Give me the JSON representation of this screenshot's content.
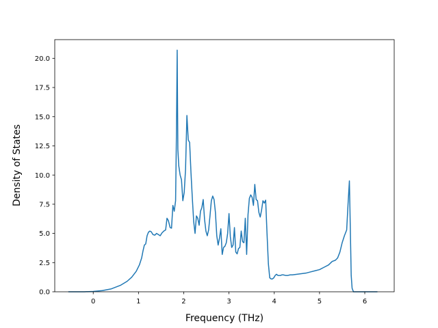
{
  "chart_data": {
    "type": "line",
    "title": "",
    "xlabel": "Frequency (THz)",
    "ylabel": "Density of States",
    "xlim": [
      -0.85,
      6.65
    ],
    "ylim": [
      0.0,
      21.6
    ],
    "xticks": [
      0,
      1,
      2,
      3,
      4,
      5,
      6
    ],
    "yticks": [
      0.0,
      2.5,
      5.0,
      7.5,
      10.0,
      12.5,
      15.0,
      17.5,
      20.0
    ],
    "xtick_labels": [
      "0",
      "1",
      "2",
      "3",
      "4",
      "5",
      "6"
    ],
    "ytick_labels": [
      "0.0",
      "2.5",
      "5.0",
      "7.5",
      "10.0",
      "12.5",
      "15.0",
      "17.5",
      "20.0"
    ],
    "grid": false,
    "legend": false,
    "series": [
      {
        "color": "#1f77b4",
        "x": [
          -0.55,
          -0.2,
          0.0,
          0.2,
          0.4,
          0.6,
          0.75,
          0.85,
          0.95,
          1.02,
          1.07,
          1.1,
          1.13,
          1.16,
          1.19,
          1.22,
          1.25,
          1.28,
          1.32,
          1.36,
          1.4,
          1.44,
          1.48,
          1.52,
          1.56,
          1.6,
          1.63,
          1.66,
          1.7,
          1.73,
          1.76,
          1.79,
          1.82,
          1.84,
          1.855,
          1.87,
          1.89,
          1.92,
          1.95,
          1.98,
          2.01,
          2.04,
          2.07,
          2.1,
          2.13,
          2.16,
          2.19,
          2.22,
          2.25,
          2.28,
          2.31,
          2.34,
          2.37,
          2.4,
          2.43,
          2.46,
          2.49,
          2.52,
          2.55,
          2.58,
          2.61,
          2.64,
          2.67,
          2.7,
          2.73,
          2.76,
          2.79,
          2.82,
          2.85,
          2.88,
          2.91,
          2.94,
          2.97,
          3.0,
          3.03,
          3.06,
          3.09,
          3.12,
          3.15,
          3.18,
          3.21,
          3.24,
          3.27,
          3.3,
          3.33,
          3.36,
          3.39,
          3.42,
          3.45,
          3.48,
          3.51,
          3.54,
          3.57,
          3.6,
          3.63,
          3.66,
          3.69,
          3.72,
          3.75,
          3.78,
          3.81,
          3.84,
          3.87,
          3.9,
          3.93,
          3.96,
          3.99,
          4.02,
          4.05,
          4.08,
          4.11,
          4.14,
          4.17,
          4.2,
          4.25,
          4.3,
          4.35,
          4.4,
          4.5,
          4.6,
          4.7,
          4.8,
          4.9,
          5.0,
          5.1,
          5.2,
          5.28,
          5.35,
          5.4,
          5.45,
          5.5,
          5.55,
          5.6,
          5.63,
          5.66,
          5.68,
          5.7,
          5.72,
          5.75,
          5.8,
          6.0,
          6.28
        ],
        "y": [
          0.0,
          0.0,
          0.03,
          0.1,
          0.25,
          0.55,
          0.9,
          1.25,
          1.75,
          2.3,
          2.9,
          3.5,
          4.0,
          4.1,
          4.8,
          5.1,
          5.2,
          5.15,
          4.9,
          4.85,
          5.0,
          4.9,
          4.8,
          5.05,
          5.2,
          5.3,
          6.3,
          6.1,
          5.5,
          5.45,
          7.4,
          6.9,
          7.8,
          14.0,
          20.7,
          12.2,
          10.8,
          10.0,
          9.6,
          7.8,
          8.5,
          10.5,
          15.1,
          13.0,
          12.8,
          10.2,
          8.0,
          6.0,
          5.0,
          6.5,
          6.3,
          5.7,
          6.9,
          7.2,
          7.9,
          6.2,
          5.2,
          4.8,
          5.3,
          6.5,
          7.8,
          8.2,
          7.9,
          6.8,
          4.8,
          4.0,
          4.6,
          5.4,
          3.2,
          3.8,
          3.9,
          4.2,
          5.0,
          6.7,
          4.7,
          3.8,
          4.0,
          5.5,
          3.4,
          3.25,
          3.7,
          3.8,
          5.2,
          4.3,
          4.2,
          6.3,
          3.2,
          6.6,
          8.0,
          8.3,
          8.1,
          7.4,
          9.2,
          7.9,
          7.8,
          6.8,
          6.4,
          7.0,
          7.8,
          7.6,
          7.85,
          5.0,
          2.4,
          1.2,
          1.1,
          1.1,
          1.2,
          1.4,
          1.5,
          1.4,
          1.4,
          1.4,
          1.45,
          1.45,
          1.4,
          1.4,
          1.45,
          1.45,
          1.5,
          1.55,
          1.6,
          1.7,
          1.8,
          1.9,
          2.1,
          2.3,
          2.6,
          2.7,
          2.9,
          3.4,
          4.2,
          4.8,
          5.3,
          7.5,
          9.5,
          5.5,
          1.4,
          0.3,
          0.0,
          0.0,
          0.0,
          0.0
        ]
      }
    ]
  }
}
